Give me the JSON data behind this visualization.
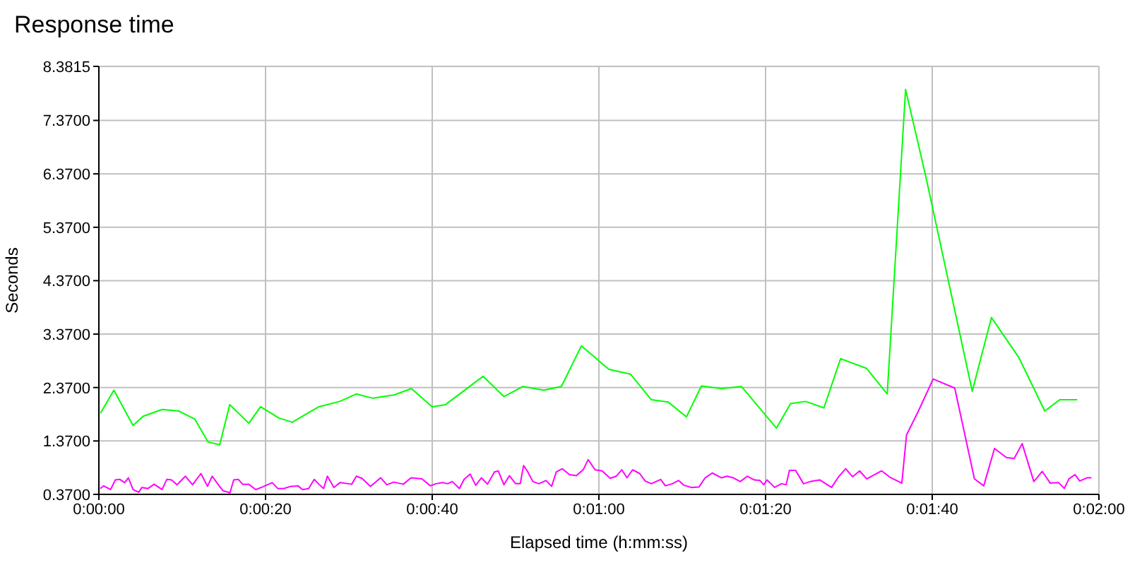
{
  "chart_data": {
    "type": "line",
    "title": "Response time",
    "xlabel": "Elapsed time (h:mm:ss)",
    "ylabel": "Seconds",
    "xlim": [
      0,
      120
    ],
    "xticks": [
      {
        "value": 0,
        "label": "0:00:00"
      },
      {
        "value": 20,
        "label": "0:00:20"
      },
      {
        "value": 40,
        "label": "0:00:40"
      },
      {
        "value": 60,
        "label": "0:01:00"
      },
      {
        "value": 80,
        "label": "0:01:20"
      },
      {
        "value": 100,
        "label": "0:01:40"
      },
      {
        "value": 120,
        "label": "0:02:00"
      }
    ],
    "ylim": [
      0.37,
      8.3815
    ],
    "yticks": [
      {
        "value": 0.37,
        "label": "0.3700"
      },
      {
        "value": 1.37,
        "label": "1.3700"
      },
      {
        "value": 2.37,
        "label": "2.3700"
      },
      {
        "value": 3.37,
        "label": "3.3700"
      },
      {
        "value": 4.37,
        "label": "4.3700"
      },
      {
        "value": 5.37,
        "label": "5.3700"
      },
      {
        "value": 6.37,
        "label": "6.3700"
      },
      {
        "value": 7.37,
        "label": "7.3700"
      },
      {
        "value": 8.3815,
        "label": "8.3815"
      }
    ],
    "grid": true,
    "marker": "none",
    "line_style": "solid",
    "series": [
      {
        "color": "#00ff00",
        "x": [
          0.2,
          1.8,
          4.1,
          5.3,
          7.6,
          9.6,
          11.5,
          13.1,
          14.5,
          15.7,
          18.0,
          19.4,
          21.6,
          23.2,
          26.4,
          28.9,
          30.9,
          32.9,
          35.4,
          37.5,
          40.0,
          41.6,
          46.1,
          48.6,
          50.9,
          53.4,
          55.5,
          57.9,
          61.2,
          63.8,
          66.3,
          68.3,
          70.5,
          72.3,
          74.7,
          77.1,
          81.3,
          83.0,
          84.8,
          87.0,
          89.0,
          92.1,
          94.6,
          96.8,
          99.2,
          104.8,
          107.1,
          110.4,
          113.5,
          115.3,
          117.4
        ],
        "values": [
          1.89,
          2.32,
          1.66,
          1.83,
          1.96,
          1.93,
          1.78,
          1.35,
          1.3,
          2.05,
          1.7,
          2.01,
          1.8,
          1.72,
          2.01,
          2.11,
          2.25,
          2.17,
          2.23,
          2.35,
          2.01,
          2.05,
          2.58,
          2.2,
          2.39,
          2.32,
          2.39,
          3.15,
          2.71,
          2.62,
          2.14,
          2.1,
          1.82,
          2.4,
          2.35,
          2.39,
          1.61,
          2.07,
          2.11,
          1.99,
          2.91,
          2.73,
          2.25,
          7.95,
          6.34,
          2.3,
          3.68,
          2.93,
          1.93,
          2.14,
          2.14
        ]
      },
      {
        "color": "#ff00ff",
        "x": [
          0.17,
          0.56,
          1.4,
          1.97,
          2.53,
          3.09,
          3.54,
          4.1,
          4.78,
          5.17,
          5.9,
          6.63,
          7.58,
          8.15,
          8.71,
          9.38,
          10.39,
          11.24,
          12.25,
          13.03,
          13.6,
          14.33,
          14.89,
          15.73,
          16.18,
          16.74,
          17.25,
          17.98,
          18.82,
          19.66,
          20.79,
          21.46,
          22.19,
          23.03,
          23.88,
          24.44,
          25.17,
          25.84,
          26.4,
          26.97,
          27.42,
          28.2,
          28.93,
          30.34,
          30.9,
          31.57,
          32.58,
          33.82,
          34.55,
          35.39,
          36.52,
          37.47,
          38.76,
          39.78,
          40.45,
          41.29,
          41.85,
          42.42,
          43.26,
          43.82,
          44.55,
          45.22,
          45.9,
          46.63,
          47.47,
          47.92,
          48.6,
          49.27,
          50.0,
          50.56,
          50.96,
          51.4,
          52.08,
          52.81,
          53.65,
          54.33,
          54.89,
          55.62,
          56.46,
          57.3,
          58.15,
          58.71,
          59.55,
          60.39,
          61.35,
          62.08,
          62.75,
          63.37,
          64.04,
          64.89,
          65.56,
          66.29,
          67.42,
          67.98,
          68.82,
          69.55,
          70.22,
          71.07,
          72.02,
          72.75,
          73.6,
          74.72,
          75.39,
          76.12,
          76.97,
          77.81,
          78.65,
          79.33,
          79.78,
          80.17,
          80.9,
          81.07,
          81.91,
          82.47,
          82.87,
          83.6,
          84.55,
          85.39,
          86.52,
          87.92,
          88.76,
          89.61,
          90.45,
          91.29,
          92.13,
          93.93,
          94.94,
          96.35,
          96.91,
          98.31,
          100.11,
          102.7,
          105.06,
          106.18,
          107.47,
          108.88,
          109.83,
          110.79,
          112.19,
          113.2,
          114.16,
          115.17,
          115.84,
          116.4,
          117.13,
          117.7,
          118.54,
          119.1
        ],
        "values": [
          0.48,
          0.53,
          0.46,
          0.64,
          0.65,
          0.59,
          0.68,
          0.46,
          0.41,
          0.5,
          0.48,
          0.56,
          0.46,
          0.65,
          0.64,
          0.55,
          0.71,
          0.55,
          0.76,
          0.52,
          0.71,
          0.55,
          0.44,
          0.4,
          0.64,
          0.65,
          0.56,
          0.56,
          0.46,
          0.51,
          0.59,
          0.48,
          0.48,
          0.52,
          0.53,
          0.46,
          0.48,
          0.65,
          0.56,
          0.48,
          0.71,
          0.5,
          0.59,
          0.56,
          0.71,
          0.67,
          0.52,
          0.68,
          0.55,
          0.6,
          0.56,
          0.68,
          0.66,
          0.53,
          0.57,
          0.59,
          0.57,
          0.61,
          0.48,
          0.65,
          0.75,
          0.54,
          0.68,
          0.56,
          0.79,
          0.81,
          0.55,
          0.72,
          0.57,
          0.57,
          0.91,
          0.81,
          0.61,
          0.57,
          0.63,
          0.52,
          0.79,
          0.85,
          0.74,
          0.72,
          0.84,
          1.02,
          0.83,
          0.81,
          0.67,
          0.71,
          0.83,
          0.68,
          0.83,
          0.76,
          0.62,
          0.57,
          0.65,
          0.53,
          0.57,
          0.63,
          0.54,
          0.5,
          0.51,
          0.68,
          0.77,
          0.68,
          0.71,
          0.68,
          0.61,
          0.71,
          0.64,
          0.63,
          0.55,
          0.64,
          0.53,
          0.5,
          0.57,
          0.55,
          0.82,
          0.82,
          0.57,
          0.61,
          0.64,
          0.5,
          0.7,
          0.85,
          0.7,
          0.81,
          0.66,
          0.81,
          0.69,
          0.58,
          1.48,
          1.92,
          2.53,
          2.36,
          0.66,
          0.53,
          1.23,
          1.06,
          1.04,
          1.32,
          0.61,
          0.8,
          0.58,
          0.59,
          0.48,
          0.66,
          0.74,
          0.62,
          0.68,
          0.68
        ]
      }
    ]
  }
}
